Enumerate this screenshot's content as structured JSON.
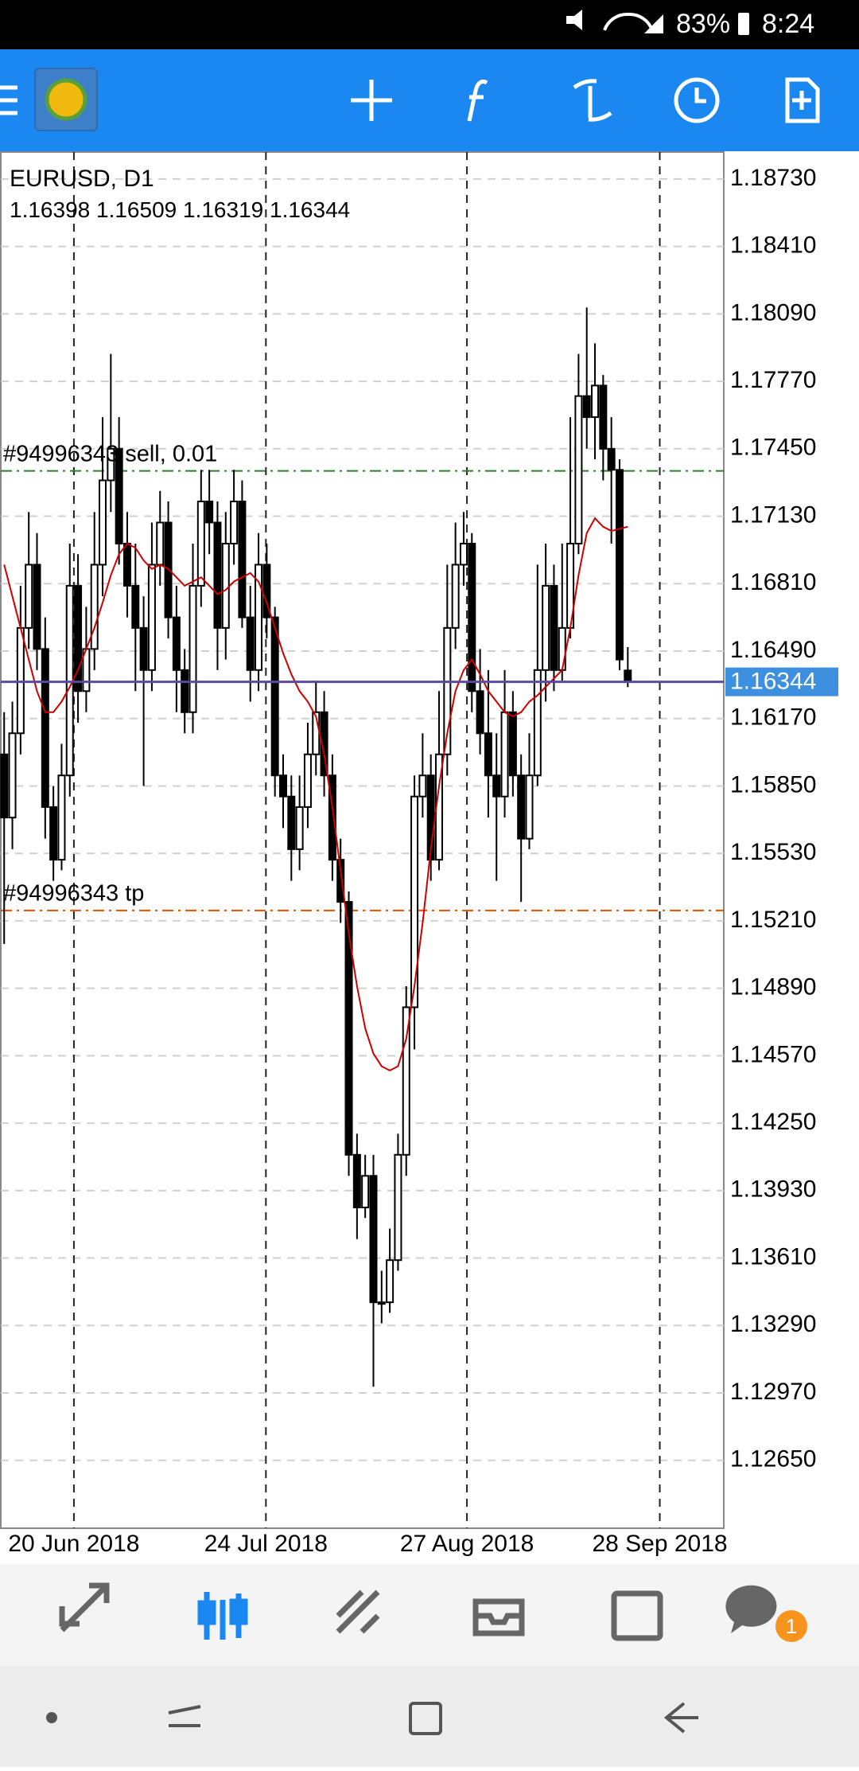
{
  "status_bar": {
    "battery": "83%",
    "time": "8:24"
  },
  "chart_data": {
    "type": "candlestick",
    "symbol": "EURUSD, D1",
    "x": [
      0,
      1,
      2,
      3,
      4,
      5,
      6,
      7,
      8,
      9,
      10,
      11,
      12,
      13,
      14,
      15,
      16,
      17,
      18,
      19,
      20,
      21,
      22,
      23,
      24,
      25,
      26,
      27,
      28,
      29,
      30,
      31,
      32,
      33,
      34,
      35,
      36,
      37,
      38,
      39,
      40,
      41,
      42,
      43,
      44,
      45,
      46,
      47,
      48,
      49,
      50,
      51,
      52,
      53,
      54,
      55,
      56,
      57,
      58,
      59,
      60,
      61,
      62,
      63,
      64,
      65,
      66,
      67,
      68,
      69,
      70,
      71,
      72,
      73,
      74,
      75,
      76
    ],
    "open": [
      1.16,
      1.157,
      1.161,
      1.166,
      1.169,
      1.165,
      1.1575,
      1.155,
      1.159,
      1.168,
      1.163,
      1.165,
      1.169,
      1.173,
      1.1745,
      1.17,
      1.168,
      1.166,
      1.164,
      1.169,
      1.171,
      1.1665,
      1.164,
      1.162,
      1.168,
      1.172,
      1.171,
      1.166,
      1.17,
      1.172,
      1.1665,
      1.164,
      1.169,
      1.1665,
      1.159,
      1.158,
      1.1555,
      1.1575,
      1.16,
      1.162,
      1.159,
      1.155,
      1.153,
      1.141,
      1.1385,
      1.14,
      1.134,
      1.134,
      1.136,
      1.141,
      1.148,
      1.158,
      1.159,
      1.155,
      1.16,
      1.166,
      1.169,
      1.17,
      1.163,
      1.161,
      1.159,
      1.158,
      1.162,
      1.159,
      1.156,
      1.159,
      1.164,
      1.168,
      1.164,
      1.166,
      1.17,
      1.177,
      1.176,
      1.1775,
      1.1745,
      1.1735,
      1.16398
    ],
    "high": [
      1.162,
      1.1625,
      1.168,
      1.1715,
      1.1705,
      1.1665,
      1.1585,
      1.1605,
      1.17,
      1.1695,
      1.167,
      1.1715,
      1.176,
      1.179,
      1.176,
      1.1715,
      1.17,
      1.1675,
      1.171,
      1.1725,
      1.172,
      1.168,
      1.165,
      1.17,
      1.1735,
      1.1735,
      1.172,
      1.1715,
      1.1735,
      1.173,
      1.168,
      1.1705,
      1.17,
      1.167,
      1.16,
      1.159,
      1.159,
      1.1615,
      1.1635,
      1.163,
      1.16,
      1.156,
      1.1535,
      1.142,
      1.141,
      1.141,
      1.1355,
      1.1375,
      1.142,
      1.149,
      1.159,
      1.161,
      1.16,
      1.163,
      1.169,
      1.171,
      1.1715,
      1.1705,
      1.165,
      1.164,
      1.161,
      1.164,
      1.163,
      1.16,
      1.161,
      1.169,
      1.17,
      1.169,
      1.17,
      1.176,
      1.179,
      1.1812,
      1.1795,
      1.178,
      1.176,
      1.174,
      1.16509
    ],
    "low": [
      1.151,
      1.1555,
      1.16,
      1.165,
      1.164,
      1.156,
      1.154,
      1.1545,
      1.158,
      1.1615,
      1.162,
      1.164,
      1.1675,
      1.1715,
      1.169,
      1.1665,
      1.163,
      1.1585,
      1.163,
      1.168,
      1.1655,
      1.162,
      1.161,
      1.161,
      1.167,
      1.1695,
      1.164,
      1.1645,
      1.169,
      1.166,
      1.1625,
      1.163,
      1.1655,
      1.158,
      1.1565,
      1.154,
      1.1545,
      1.1565,
      1.159,
      1.158,
      1.154,
      1.152,
      1.14,
      1.137,
      1.138,
      1.13,
      1.133,
      1.1335,
      1.1355,
      1.14,
      1.146,
      1.157,
      1.154,
      1.1545,
      1.159,
      1.165,
      1.168,
      1.162,
      1.16,
      1.157,
      1.154,
      1.157,
      1.158,
      1.153,
      1.1555,
      1.1585,
      1.1625,
      1.163,
      1.1635,
      1.1655,
      1.1695,
      1.1745,
      1.174,
      1.173,
      1.17,
      1.164,
      1.16319
    ],
    "close": [
      1.157,
      1.161,
      1.166,
      1.169,
      1.165,
      1.1575,
      1.155,
      1.159,
      1.168,
      1.163,
      1.165,
      1.169,
      1.173,
      1.1745,
      1.17,
      1.168,
      1.166,
      1.164,
      1.169,
      1.171,
      1.1665,
      1.164,
      1.162,
      1.168,
      1.172,
      1.171,
      1.166,
      1.17,
      1.172,
      1.1665,
      1.164,
      1.169,
      1.1665,
      1.159,
      1.158,
      1.1555,
      1.1575,
      1.16,
      1.162,
      1.159,
      1.155,
      1.153,
      1.141,
      1.1385,
      1.14,
      1.134,
      1.134,
      1.136,
      1.141,
      1.148,
      1.158,
      1.159,
      1.155,
      1.16,
      1.166,
      1.169,
      1.17,
      1.163,
      1.161,
      1.159,
      1.158,
      1.162,
      1.159,
      1.156,
      1.159,
      1.164,
      1.168,
      1.164,
      1.166,
      1.17,
      1.177,
      1.176,
      1.1775,
      1.1745,
      1.1735,
      1.1645,
      1.16344
    ],
    "ma": {
      "color": "#cc0000",
      "values": [
        1.169,
        1.1675,
        1.166,
        1.1645,
        1.163,
        1.162,
        1.162,
        1.1625,
        1.1632,
        1.164,
        1.165,
        1.166,
        1.1672,
        1.1685,
        1.1695,
        1.17,
        1.1698,
        1.1692,
        1.1688,
        1.169,
        1.1688,
        1.1684,
        1.168,
        1.1682,
        1.1684,
        1.168,
        1.1676,
        1.1678,
        1.1682,
        1.1684,
        1.1686,
        1.1682,
        1.1672,
        1.166,
        1.1648,
        1.1638,
        1.163,
        1.1625,
        1.1618,
        1.16,
        1.1575,
        1.1545,
        1.1515,
        1.149,
        1.147,
        1.1458,
        1.1452,
        1.145,
        1.1452,
        1.1465,
        1.149,
        1.152,
        1.1555,
        1.1585,
        1.161,
        1.163,
        1.164,
        1.1645,
        1.1638,
        1.163,
        1.1625,
        1.162,
        1.1618,
        1.162,
        1.1625,
        1.1628,
        1.1632,
        1.1636,
        1.164,
        1.166,
        1.1685,
        1.1705,
        1.1712,
        1.1708,
        1.1706,
        1.1707,
        1.1708
      ]
    },
    "levels": [
      {
        "label": "#94996343 sell, 0.01",
        "value": 1.17345,
        "color": "#2e7d32"
      },
      {
        "label": "#94996343 tp",
        "value": 1.15259,
        "color": "#e65100"
      }
    ],
    "ylim": [
      1.12328,
      1.18858
    ],
    "yticks": [
      {
        "value": 1.1873,
        "label": "1.18730"
      },
      {
        "value": 1.1841,
        "label": "1.18410"
      },
      {
        "value": 1.1809,
        "label": "1.18090"
      },
      {
        "value": 1.1777,
        "label": "1.17770"
      },
      {
        "value": 1.1745,
        "label": "1.17450"
      },
      {
        "value": 1.1713,
        "label": "1.17130"
      },
      {
        "value": 1.1681,
        "label": "1.16810"
      },
      {
        "value": 1.1649,
        "label": "1.16490"
      },
      {
        "value": 1.1617,
        "label": "1.16170"
      },
      {
        "value": 1.1585,
        "label": "1.15850"
      },
      {
        "value": 1.1553,
        "label": "1.15530"
      },
      {
        "value": 1.1521,
        "label": "1.15210"
      },
      {
        "value": 1.1489,
        "label": "1.14890"
      },
      {
        "value": 1.1457,
        "label": "1.14570"
      },
      {
        "value": 1.1425,
        "label": "1.14250"
      },
      {
        "value": 1.1393,
        "label": "1.13930"
      },
      {
        "value": 1.1361,
        "label": "1.13610"
      },
      {
        "value": 1.1329,
        "label": "1.13290"
      },
      {
        "value": 1.1297,
        "label": "1.12970"
      },
      {
        "value": 1.1265,
        "label": "1.12650"
      }
    ],
    "xlim": [
      -0.41,
      87.7
    ],
    "xticks": [
      {
        "value": 8.5,
        "label": "20 Jun 2018"
      },
      {
        "value": 31.9,
        "label": "24 Jul 2018"
      },
      {
        "value": 56.4,
        "label": "27 Aug 2018"
      },
      {
        "value": 79.9,
        "label": "28 Sep 2018"
      }
    ],
    "grid": true
  },
  "bottom_nav": {
    "badge": "1"
  }
}
